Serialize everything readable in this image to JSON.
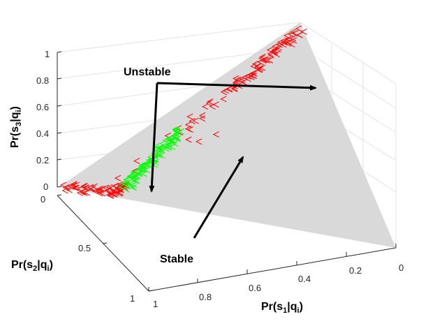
{
  "chart_data": {
    "type": "scatter",
    "projection": "3d",
    "simplex_color": "#d9d9d9",
    "axes": {
      "x": {
        "label_prefix": "Pr(s",
        "label_index": "1",
        "label_mid": "|q",
        "label_sub": "i",
        "label_suffix": ")",
        "range": [
          0,
          1
        ],
        "ticks": [
          "1",
          "0.8",
          "0.6",
          "0.4",
          "0.2",
          "0"
        ]
      },
      "y": {
        "label_prefix": "Pr(s",
        "label_index": "2",
        "label_mid": "|q",
        "label_sub": "i",
        "label_suffix": ")",
        "range": [
          0,
          1
        ],
        "ticks": [
          "0",
          "0.5",
          "1"
        ]
      },
      "z": {
        "label_prefix": "Pr(s",
        "label_index": "3",
        "label_mid": "|q",
        "label_sub": "i",
        "label_suffix": ")",
        "range": [
          0,
          1
        ],
        "ticks": [
          "0",
          "0.2",
          "0.4",
          "0.6",
          "0.8",
          "1"
        ]
      }
    },
    "series": [
      {
        "color": "#ff0000",
        "marker": "<",
        "segments": [
          {
            "from": [
              0.98,
              0.01,
              0.01
            ],
            "to": [
              0.55,
              0.42,
              0.03
            ],
            "n": 45
          },
          {
            "from": [
              0.55,
              0.42,
              0.03
            ],
            "to": [
              0.47,
              0.47,
              0.06
            ],
            "n": 25
          },
          {
            "from": [
              0.2,
              0.15,
              0.65
            ],
            "to": [
              0.01,
              0.01,
              0.98
            ],
            "n": 70
          },
          {
            "from": [
              0.38,
              0.24,
              0.38
            ],
            "to": [
              0.2,
              0.15,
              0.65
            ],
            "n": 20
          }
        ],
        "scattered": [
          [
            0.6,
            0.3,
            0.1
          ],
          [
            0.55,
            0.25,
            0.2
          ],
          [
            0.5,
            0.35,
            0.15
          ],
          [
            0.3,
            0.3,
            0.4
          ],
          [
            0.25,
            0.4,
            0.35
          ],
          [
            0.15,
            0.5,
            0.35
          ],
          [
            0.45,
            0.2,
            0.35
          ],
          [
            0.05,
            0.55,
            0.4
          ]
        ]
      },
      {
        "color": "#00ff00",
        "marker": "<",
        "segments": [
          {
            "from": [
              0.47,
              0.47,
              0.06
            ],
            "to": [
              0.38,
              0.24,
              0.38
            ],
            "n": 110
          }
        ],
        "scattered": []
      }
    ]
  },
  "annotations": {
    "unstable": "Unstable",
    "stable": "Stable"
  }
}
